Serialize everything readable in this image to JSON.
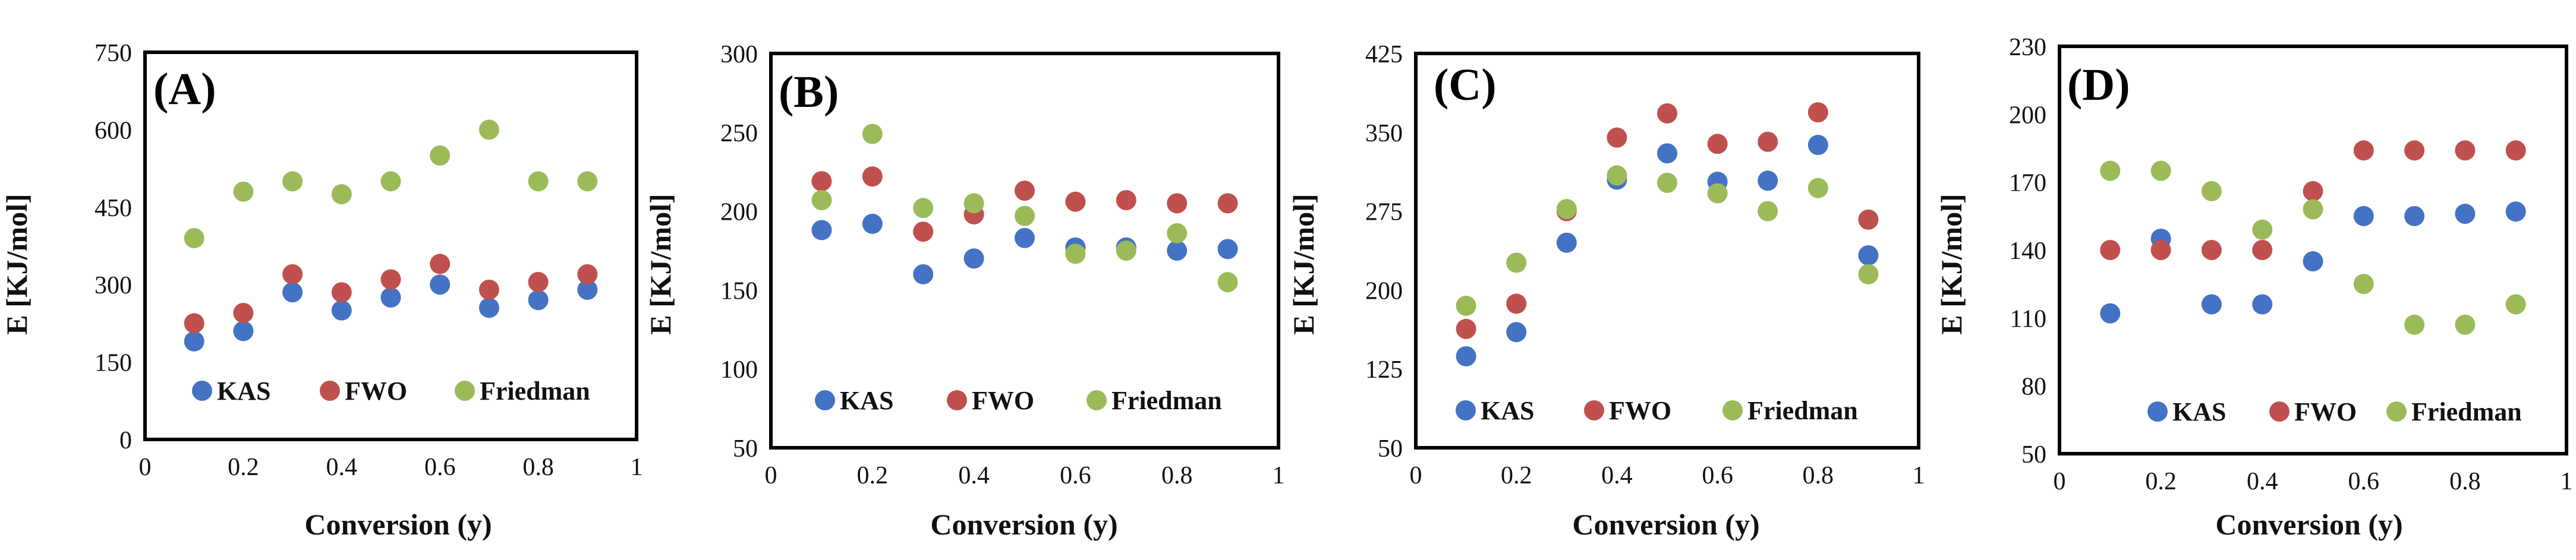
{
  "colors": {
    "KAS": "#4472c4",
    "FWO": "#c0504d",
    "Friedman": "#9bbb59"
  },
  "chart_data": [
    {
      "type": "scatter",
      "panel_label": "(A)",
      "xlabel": "Conversion (y)",
      "ylabel": "E [KJ/mol]",
      "xlim": [
        0,
        1
      ],
      "ylim": [
        0,
        750
      ],
      "x_ticks": [
        "0",
        "0.2",
        "0.4",
        "0.6",
        "0.8",
        "1"
      ],
      "y_ticks": [
        "0",
        "150",
        "300",
        "450",
        "600",
        "750"
      ],
      "x": [
        0.1,
        0.2,
        0.3,
        0.4,
        0.5,
        0.6,
        0.7,
        0.8,
        0.9
      ],
      "series": [
        {
          "name": "KAS",
          "values": [
            190,
            210,
            285,
            250,
            275,
            300,
            255,
            270,
            290
          ]
        },
        {
          "name": "FWO",
          "values": [
            225,
            245,
            320,
            285,
            310,
            340,
            290,
            305,
            320
          ]
        },
        {
          "name": "Friedman",
          "values": [
            390,
            480,
            500,
            475,
            500,
            550,
            600,
            500,
            500
          ]
        }
      ]
    },
    {
      "type": "scatter",
      "panel_label": "(B)",
      "xlabel": "Conversion (y)",
      "ylabel": "E [KJ/mol]",
      "xlim": [
        0,
        1
      ],
      "ylim": [
        50,
        300
      ],
      "x_ticks": [
        "0",
        "0.2",
        "0.4",
        "0.6",
        "0.8",
        "1"
      ],
      "y_ticks": [
        "50",
        "100",
        "150",
        "200",
        "250",
        "300"
      ],
      "x": [
        0.1,
        0.2,
        0.3,
        0.4,
        0.5,
        0.6,
        0.7,
        0.8,
        0.9
      ],
      "series": [
        {
          "name": "KAS",
          "values": [
            188,
            192,
            160,
            170,
            183,
            177,
            177,
            175,
            176
          ]
        },
        {
          "name": "FWO",
          "values": [
            219,
            222,
            187,
            198,
            213,
            206,
            207,
            205,
            205
          ]
        },
        {
          "name": "Friedman",
          "values": [
            207,
            249,
            202,
            205,
            197,
            173,
            175,
            186,
            155
          ]
        }
      ]
    },
    {
      "type": "scatter",
      "panel_label": "(C)",
      "xlabel": "Conversion (y)",
      "ylabel": "E [KJ/mol]",
      "xlim": [
        0,
        1
      ],
      "ylim": [
        50,
        425
      ],
      "x_ticks": [
        "0",
        "0.2",
        "0.4",
        "0.6",
        "0.8",
        "1"
      ],
      "y_ticks": [
        "50",
        "125",
        "200",
        "275",
        "350",
        "425"
      ],
      "x": [
        0.1,
        0.2,
        0.3,
        0.4,
        0.5,
        0.6,
        0.7,
        0.8,
        0.9
      ],
      "series": [
        {
          "name": "KAS",
          "values": [
            137,
            160,
            245,
            305,
            330,
            303,
            304,
            338,
            233
          ]
        },
        {
          "name": "FWO",
          "values": [
            163,
            187,
            275,
            345,
            368,
            339,
            341,
            369,
            267
          ]
        },
        {
          "name": "Friedman",
          "values": [
            185,
            226,
            277,
            309,
            302,
            292,
            275,
            297,
            215
          ]
        }
      ]
    },
    {
      "type": "scatter",
      "panel_label": "(D)",
      "xlabel": "Conversion (y)",
      "ylabel": "E [KJ/mol]",
      "xlim": [
        0,
        1
      ],
      "ylim": [
        50,
        230
      ],
      "x_ticks": [
        "0",
        "0.2",
        "0.4",
        "0.6",
        "0.8",
        "1"
      ],
      "y_ticks": [
        "50",
        "80",
        "110",
        "140",
        "170",
        "200",
        "230"
      ],
      "x": [
        0.1,
        0.2,
        0.3,
        0.4,
        0.5,
        0.6,
        0.7,
        0.8,
        0.9
      ],
      "series": [
        {
          "name": "KAS",
          "values": [
            112,
            145,
            116,
            116,
            135,
            155,
            155,
            156,
            157
          ]
        },
        {
          "name": "FWO",
          "values": [
            140,
            140,
            140,
            140,
            166,
            184,
            184,
            184,
            184
          ]
        },
        {
          "name": "Friedman",
          "values": [
            175,
            175,
            166,
            149,
            158,
            125,
            107,
            107,
            116
          ]
        }
      ]
    }
  ]
}
